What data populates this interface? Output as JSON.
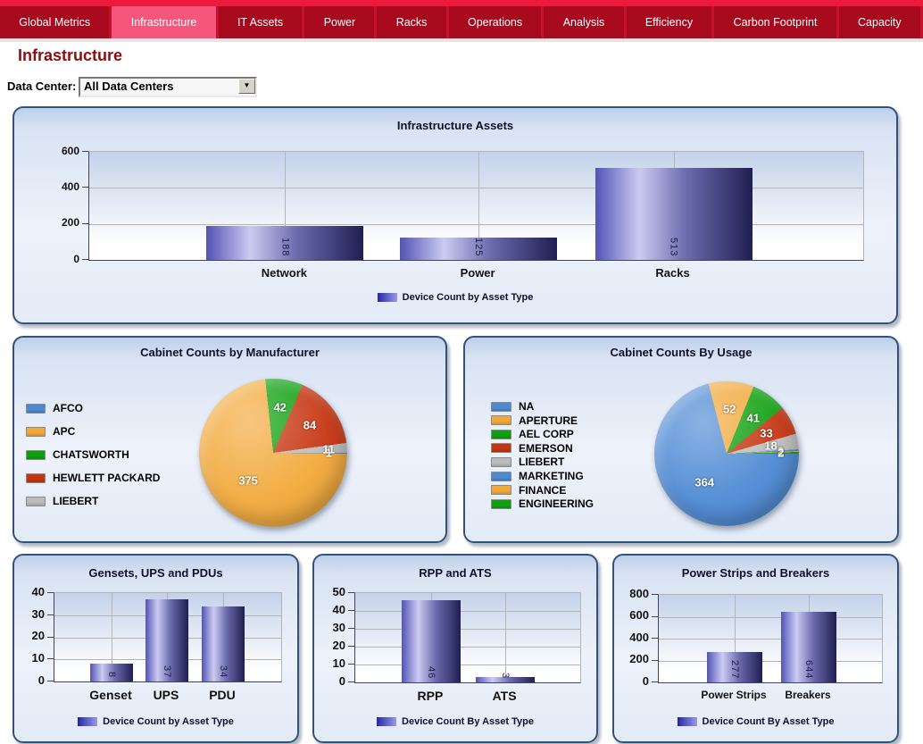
{
  "nav": {
    "tabs": [
      {
        "label": "Global Metrics",
        "active": false
      },
      {
        "label": "Infrastructure",
        "active": true
      },
      {
        "label": "IT Assets",
        "active": false
      },
      {
        "label": "Power",
        "active": false
      },
      {
        "label": "Racks",
        "active": false
      },
      {
        "label": "Operations",
        "active": false
      },
      {
        "label": "Analysis",
        "active": false
      },
      {
        "label": "Efficiency",
        "active": false
      },
      {
        "label": "Carbon Footprint",
        "active": false
      },
      {
        "label": "Capacity",
        "active": false
      }
    ]
  },
  "page": {
    "title": "Infrastructure"
  },
  "filter": {
    "label": "Data Center:",
    "value": "All Data Centers",
    "dropdown_arrow": "dropdown-arrow-icon"
  },
  "colors": {
    "nav_strip": "#ee1a3e",
    "nav_bar": "#c8102e",
    "nav_tab": "#a60a1c",
    "nav_tab_active": "#f4567c",
    "page_title": "#8b0d10",
    "panel_border": "#32527e",
    "bar_gradient": [
      "#5353b5",
      "#cbcbf2",
      "#6a6aad",
      "#1f1f52"
    ],
    "pie_palette": [
      "#4e8ad4",
      "#f2a93b",
      "#0fa00f",
      "#c63511",
      "#bcbcbc"
    ]
  },
  "chart_data": [
    {
      "type": "bar",
      "title": "Infrastructure Assets",
      "categories": [
        "Network",
        "Power",
        "Racks"
      ],
      "values": [
        188,
        125,
        513
      ],
      "ylim": [
        0,
        600
      ],
      "yticks": [
        0,
        200,
        400,
        600
      ],
      "legend": "Device Count by Asset Type",
      "grid": true,
      "legend_position": "bottom"
    },
    {
      "type": "pie",
      "title": "Cabinet Counts by Manufacturer",
      "labels": [
        "AFCO",
        "APC",
        "CHATSWORTH",
        "HEWLETT PACKARD",
        "LIEBERT"
      ],
      "values": [
        1,
        375,
        42,
        84,
        11
      ],
      "colors": [
        "#4e8ad4",
        "#f2a93b",
        "#0fa00f",
        "#c63511",
        "#bcbcbc"
      ],
      "legend_position": "left"
    },
    {
      "type": "pie",
      "title": "Cabinet Counts By Usage",
      "labels": [
        "NA",
        "APERTURE",
        "AEL CORP",
        "EMERSON",
        "LIEBERT",
        "MARKETING",
        "FINANCE",
        "ENGINEERING"
      ],
      "values": [
        364,
        52,
        41,
        33,
        18,
        2,
        1,
        2
      ],
      "colors": [
        "#4e8ad4",
        "#f2a93b",
        "#0fa00f",
        "#c63511",
        "#bcbcbc",
        "#4e8ad4",
        "#f2a93b",
        "#0fa00f"
      ],
      "legend_position": "left"
    },
    {
      "type": "bar",
      "title": "Gensets, UPS and PDUs",
      "categories": [
        "Genset",
        "UPS",
        "PDU"
      ],
      "values": [
        8,
        37,
        34
      ],
      "ylim": [
        0,
        40
      ],
      "yticks": [
        0,
        10,
        20,
        30,
        40
      ],
      "legend": "Device Count by Asset Type",
      "grid": true,
      "legend_position": "bottom"
    },
    {
      "type": "bar",
      "title": "RPP and ATS",
      "categories": [
        "RPP",
        "ATS"
      ],
      "values": [
        46,
        3
      ],
      "ylim": [
        0,
        50
      ],
      "yticks": [
        0,
        10,
        20,
        30,
        40,
        50
      ],
      "legend": "Device Count By Asset Type",
      "grid": true,
      "legend_position": "bottom"
    },
    {
      "type": "bar",
      "title": "Power Strips and Breakers",
      "categories": [
        "Power Strips",
        "Breakers"
      ],
      "values": [
        277,
        644
      ],
      "ylim": [
        0,
        800
      ],
      "yticks": [
        0,
        200,
        400,
        600,
        800
      ],
      "legend": "Device Count By Asset Type",
      "grid": true,
      "legend_position": "bottom"
    }
  ]
}
